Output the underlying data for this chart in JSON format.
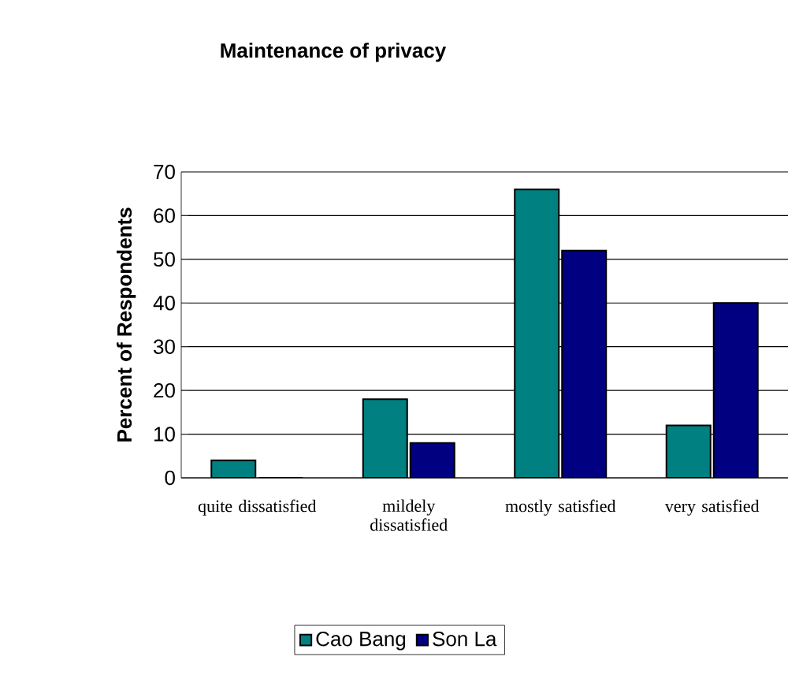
{
  "chart_data": {
    "type": "bar",
    "title": "Maintenance of privacy",
    "ylabel": "Percent of Respondents",
    "categories": [
      "quite dissatisfied",
      "mildely dissatisfied",
      "mostly satisfied",
      "very satisfied"
    ],
    "series": [
      {
        "name": "Cao Bang",
        "color": "#008080",
        "values": [
          4,
          18,
          66,
          12
        ]
      },
      {
        "name": "Son La",
        "color": "#000080",
        "values": [
          0,
          8,
          52,
          40
        ]
      }
    ],
    "ylim": [
      0,
      70
    ],
    "yticks": [
      0,
      10,
      20,
      30,
      40,
      50,
      60,
      70
    ],
    "grid": "y",
    "legend": "bottom"
  }
}
